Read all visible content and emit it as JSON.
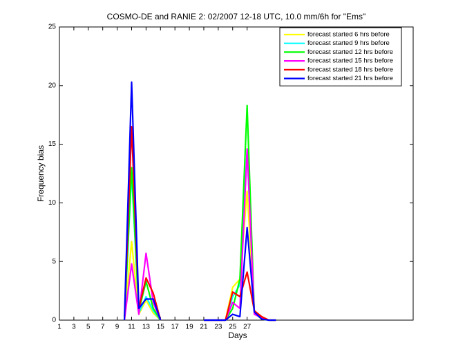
{
  "chart_data": {
    "type": "line",
    "title": "COSMO-DE and RANIE 2: 02/2007 12-18 UTC, 10.0 mm/6h for \"Ems\"",
    "x_label": "Days",
    "y_label": "Frequency bias",
    "x": [
      10,
      11,
      12,
      13,
      14,
      15,
      16,
      17,
      18,
      19,
      20,
      21,
      22,
      23,
      24,
      25,
      26,
      27,
      28,
      29,
      30,
      31
    ],
    "series": [
      {
        "name": "forecast started 6 hrs before",
        "color": "#ffff00",
        "values": [
          0,
          6.7,
          0.5,
          1.7,
          0.6,
          0,
          null,
          null,
          null,
          null,
          null,
          0,
          0,
          0,
          0,
          2.8,
          3.5,
          11.0,
          0.8,
          0.3,
          0,
          0
        ]
      },
      {
        "name": "forecast started 9 hrs before",
        "color": "#00ffff",
        "values": [
          0,
          12.5,
          0.6,
          2.0,
          0.8,
          0,
          null,
          null,
          null,
          null,
          null,
          0,
          0,
          0,
          0,
          2.0,
          3.0,
          14.5,
          0.6,
          0.2,
          0,
          0
        ]
      },
      {
        "name": "forecast started 12 hrs before",
        "color": "#00ff00",
        "values": [
          0,
          13.0,
          0.8,
          3.3,
          1.0,
          0,
          null,
          null,
          null,
          null,
          null,
          0,
          0,
          0,
          0,
          1.0,
          3.5,
          18.3,
          0.6,
          0.1,
          0,
          0
        ]
      },
      {
        "name": "forecast started 15 hrs before",
        "color": "#ff00ff",
        "values": [
          0,
          4.8,
          0.5,
          5.7,
          1.5,
          0,
          null,
          null,
          null,
          null,
          null,
          0,
          0,
          0,
          0,
          1.5,
          1.0,
          14.6,
          0.5,
          0.2,
          0,
          0
        ]
      },
      {
        "name": "forecast started 18 hrs before",
        "color": "#ff0000",
        "values": [
          0,
          16.5,
          1.0,
          3.6,
          2.3,
          0,
          null,
          null,
          null,
          null,
          null,
          0,
          0,
          0,
          0,
          2.4,
          2.0,
          4.1,
          0.8,
          0.3,
          0,
          0
        ]
      },
      {
        "name": "forecast started 21 hrs before",
        "color": "#0000ff",
        "values": [
          0,
          20.3,
          1.0,
          1.8,
          1.8,
          0,
          null,
          null,
          null,
          null,
          null,
          0,
          0,
          0,
          0,
          0.5,
          0.3,
          7.9,
          0.7,
          0.1,
          0,
          0
        ]
      }
    ],
    "xlim": [
      1,
      50
    ],
    "xticks": [
      1,
      3,
      5,
      7,
      9,
      11,
      13,
      15,
      17,
      19,
      21,
      23,
      25,
      27
    ],
    "ylim": [
      0,
      25
    ],
    "yticks": [
      0,
      5,
      10,
      15,
      20,
      25
    ],
    "grid": false,
    "legend": "upper right"
  }
}
